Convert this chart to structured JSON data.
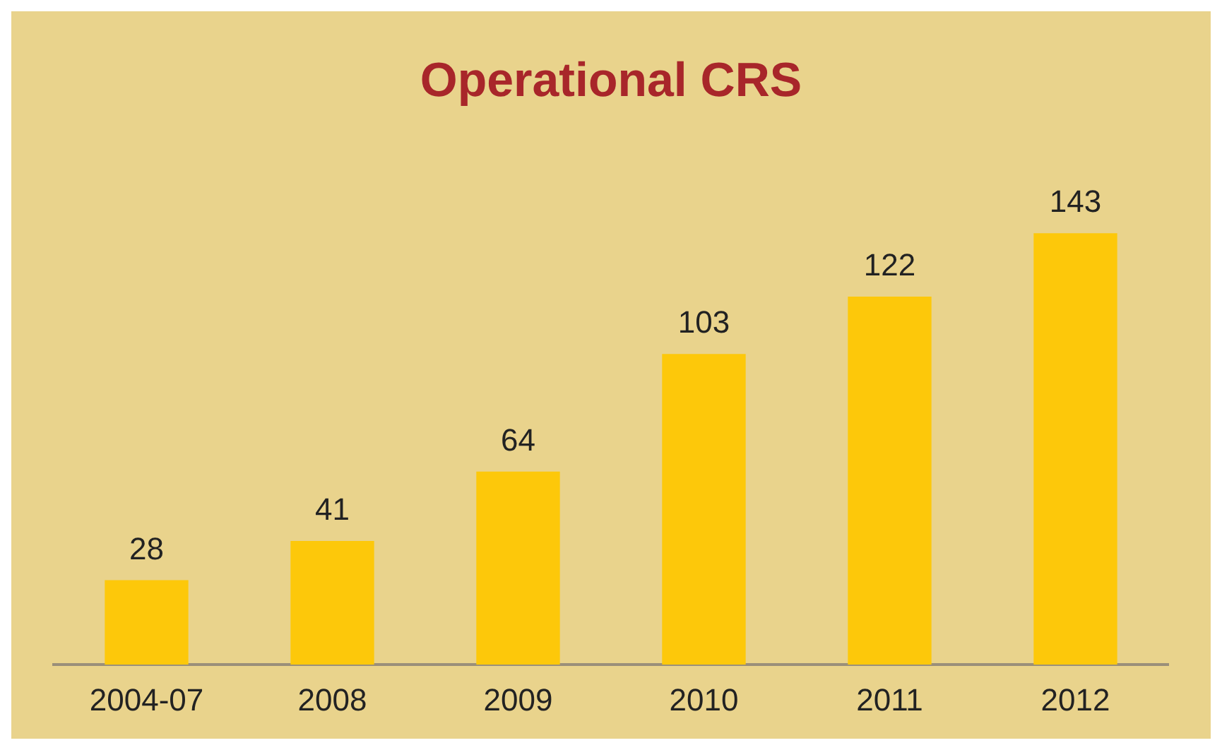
{
  "chart_data": {
    "type": "bar",
    "title": "Operational CRS",
    "categories": [
      "2004-07",
      "2008",
      "2009",
      "2010",
      "2011",
      "2012"
    ],
    "values": [
      28,
      41,
      64,
      103,
      122,
      143
    ],
    "color": "#fdc80a",
    "data_labels": true,
    "grid": false,
    "legend": false
  }
}
